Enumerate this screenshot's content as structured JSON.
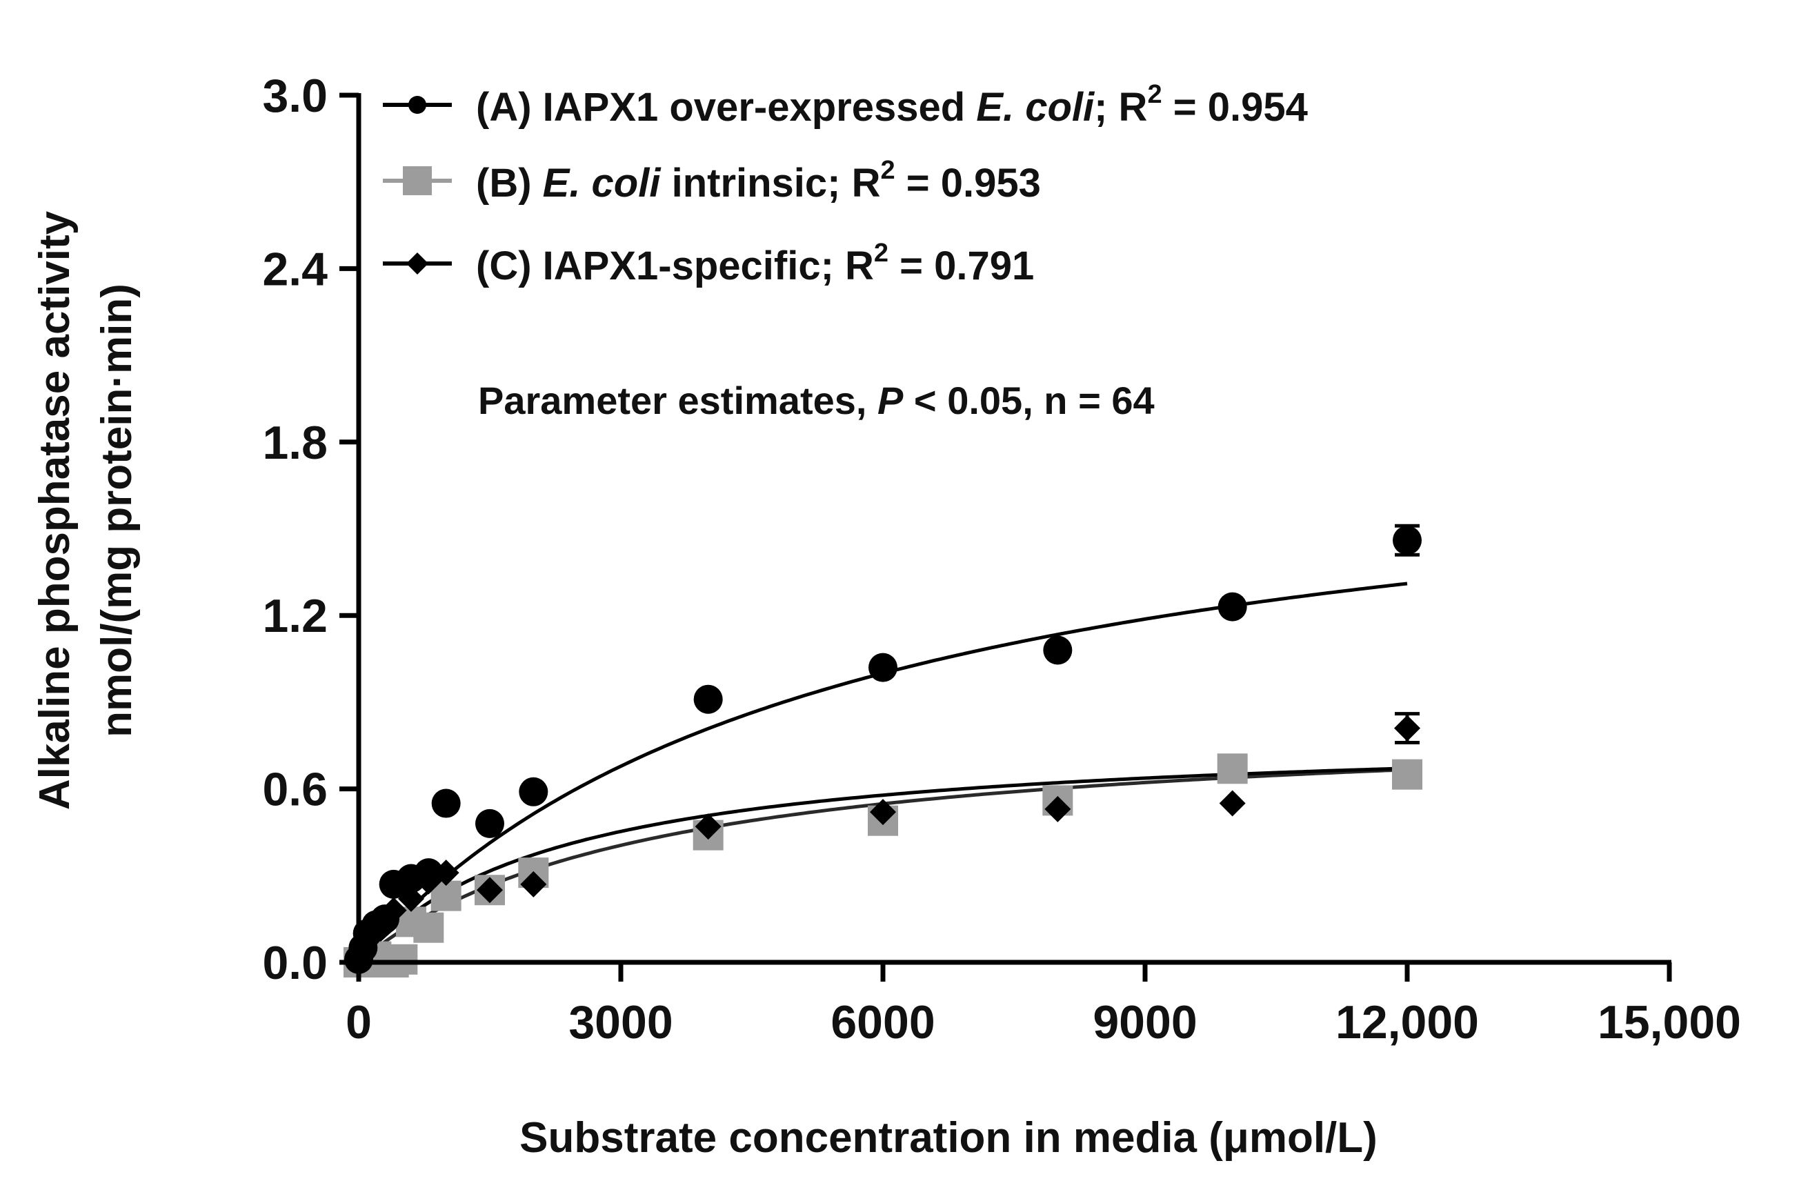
{
  "chart_data": {
    "type": "scatter",
    "title": "",
    "xlabel": "Substrate concentration in media (μmol/L)",
    "ylabel": [
      "Alkaline phosphatase activity",
      "nmol/(mg protein·min)"
    ],
    "xlim": [
      0,
      15000
    ],
    "ylim": [
      0,
      3.0
    ],
    "x_ticks": [
      0,
      3000,
      6000,
      9000,
      12000,
      15000
    ],
    "x_tick_labels": [
      "0",
      "3000",
      "6000",
      "9000",
      "12,000",
      "15,000"
    ],
    "y_ticks": [
      0,
      0.6,
      1.2,
      1.8,
      2.4,
      3.0
    ],
    "y_tick_labels": [
      "0.0",
      "0.6",
      "1.2",
      "1.8",
      "2.4",
      "3.0"
    ],
    "legend_position": "top-left",
    "annotation": {
      "pre": "Parameter estimates, ",
      "italic": "P",
      "post": " < 0.05, n = 64"
    },
    "series": [
      {
        "name": "(A) IAPX1 over-expressed E. coli; R2 = 0.954",
        "legend": {
          "pre": "(A) IAPX1 over-expressed ",
          "italic": "E. coli",
          "post": "; R",
          "sup": "2",
          "tail": " = 0.954"
        },
        "marker": "circle",
        "color": "#000000",
        "x": [
          0,
          50,
          100,
          200,
          300,
          400,
          600,
          800,
          1000,
          1500,
          2000,
          4000,
          6000,
          8000,
          10000,
          12000
        ],
        "y": [
          0.01,
          0.05,
          0.1,
          0.13,
          0.15,
          0.27,
          0.29,
          0.31,
          0.55,
          0.48,
          0.59,
          0.91,
          1.02,
          1.08,
          1.23,
          1.46
        ],
        "error": [
          0,
          0,
          0,
          0,
          0,
          0,
          0,
          0,
          0,
          0,
          0,
          0,
          0,
          0,
          0,
          0.05
        ],
        "fit": {
          "model": "Michaelis-Menten",
          "vmax": 1.9,
          "km": 5400
        }
      },
      {
        "name": "(B) E. coli intrinsic; R2 = 0.953",
        "legend": {
          "pre": "(B) ",
          "italic": "E. coli",
          "post": " intrinsic; R",
          "sup": "2",
          "tail": " = 0.953"
        },
        "marker": "square",
        "color": "#9c9c9c",
        "x": [
          0,
          100,
          200,
          400,
          500,
          600,
          800,
          1000,
          1500,
          2000,
          4000,
          6000,
          8000,
          10000,
          12000
        ],
        "y": [
          0.0,
          0.0,
          0.02,
          0.0,
          0.01,
          0.14,
          0.12,
          0.23,
          0.25,
          0.31,
          0.44,
          0.49,
          0.56,
          0.67,
          0.65
        ],
        "error": [],
        "fit": {
          "model": "Michaelis-Menten",
          "vmax": 0.85,
          "km": 3300
        }
      },
      {
        "name": "(C) IAPX1-specific; R2 = 0.791",
        "legend": {
          "pre": "(C) IAPX1-specific; R",
          "italic": "",
          "post": "",
          "sup": "2",
          "tail": " = 0.791"
        },
        "marker": "diamond",
        "color": "#000000",
        "x": [
          0,
          100,
          200,
          300,
          400,
          600,
          800,
          1000,
          1500,
          2000,
          4000,
          6000,
          8000,
          10000,
          12000
        ],
        "y": [
          0.02,
          0.08,
          0.12,
          0.14,
          0.18,
          0.22,
          0.28,
          0.31,
          0.25,
          0.27,
          0.47,
          0.52,
          0.53,
          0.55,
          0.81
        ],
        "error": [
          0,
          0,
          0,
          0,
          0,
          0,
          0,
          0,
          0,
          0,
          0,
          0,
          0,
          0,
          0.05
        ],
        "fit": {
          "model": "Michaelis-Menten",
          "vmax": 0.8,
          "km": 2300
        }
      }
    ]
  }
}
